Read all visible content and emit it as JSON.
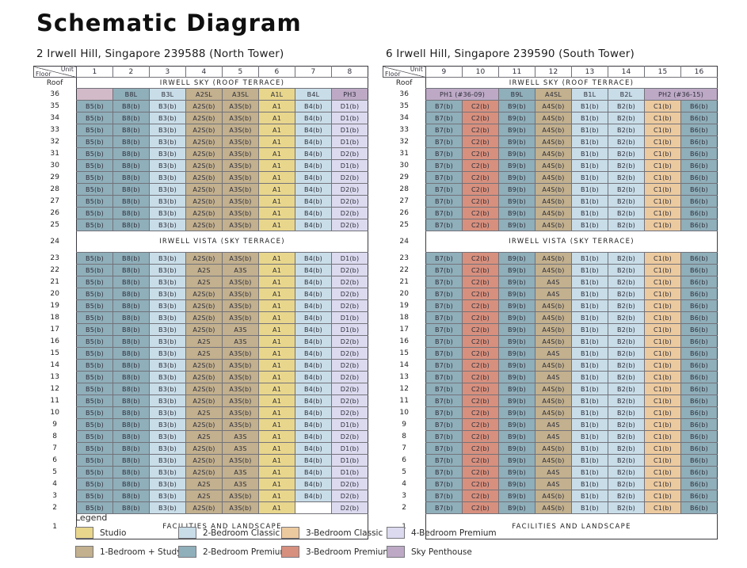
{
  "page": {
    "title": "Schematic Diagram"
  },
  "corner": {
    "unit": "Unit",
    "floor": "Floor"
  },
  "colors": {
    "studio": "#e8d68c",
    "1br_study": "#c2b08e",
    "2br_classic": "#c8dde8",
    "2br_premium": "#8fafba",
    "3br_classic": "#ecca9f",
    "3br_premium": "#d7907e",
    "4br_premium": "#dcdaef",
    "sky_penthouse": "#bda9c6"
  },
  "type_map": {
    "A1": "studio",
    "A2S": "1br_study",
    "A3S": "1br_study",
    "A4S": "1br_study",
    "B1": "2br_classic",
    "B2": "2br_classic",
    "B3": "2br_classic",
    "B4": "2br_classic",
    "B5": "2br_premium",
    "B6": "2br_premium",
    "B7": "2br_premium",
    "B8": "2br_premium",
    "B9": "2br_premium",
    "C1": "3br_classic",
    "C2": "3br_premium",
    "D1": "4br_premium",
    "D2": "4br_premium",
    "PH1": "sky_penthouse",
    "PH2": "sky_penthouse",
    "PH3": "sky_penthouse"
  },
  "towers": [
    {
      "subtitle": "2 Irwell Hill, Singapore 239588 (North Tower)",
      "units": [
        "1",
        "2",
        "3",
        "4",
        "5",
        "6",
        "7",
        "8"
      ],
      "roof": {
        "f": "Roof",
        "text": "IRWELL SKY (ROOF TERRACE)"
      },
      "row36": {
        "f": "36",
        "cells": [
          {
            "t": "",
            "type": "sky_penthouse",
            "color": "#d2bac9"
          },
          {
            "t": "B8L"
          },
          {
            "t": "B3L"
          },
          {
            "t": "A2SL"
          },
          {
            "t": "A3SL"
          },
          {
            "t": "A1L"
          },
          {
            "t": "B4L"
          },
          {
            "t": "PH3"
          }
        ]
      },
      "upper": [
        {
          "f": "35",
          "c": [
            "B5(b)",
            "B8(b)",
            "B3(b)",
            "A2S(b)",
            "A3S(b)",
            "A1",
            "B4(b)",
            "D1(b)"
          ]
        },
        {
          "f": "34",
          "c": [
            "B5(b)",
            "B8(b)",
            "B3(b)",
            "A2S(b)",
            "A3S(b)",
            "A1",
            "B4(b)",
            "D1(b)"
          ]
        },
        {
          "f": "33",
          "c": [
            "B5(b)",
            "B8(b)",
            "B3(b)",
            "A2S(b)",
            "A3S(b)",
            "A1",
            "B4(b)",
            "D1(b)"
          ]
        },
        {
          "f": "32",
          "c": [
            "B5(b)",
            "B8(b)",
            "B3(b)",
            "A2S(b)",
            "A3S(b)",
            "A1",
            "B4(b)",
            "D1(b)"
          ]
        },
        {
          "f": "31",
          "c": [
            "B5(b)",
            "B8(b)",
            "B3(b)",
            "A2S(b)",
            "A3S(b)",
            "A1",
            "B4(b)",
            "D2(b)"
          ]
        },
        {
          "f": "30",
          "c": [
            "B5(b)",
            "B8(b)",
            "B3(b)",
            "A2S(b)",
            "A3S(b)",
            "A1",
            "B4(b)",
            "D1(b)"
          ]
        },
        {
          "f": "29",
          "c": [
            "B5(b)",
            "B8(b)",
            "B3(b)",
            "A2S(b)",
            "A3S(b)",
            "A1",
            "B4(b)",
            "D2(b)"
          ]
        },
        {
          "f": "28",
          "c": [
            "B5(b)",
            "B8(b)",
            "B3(b)",
            "A2S(b)",
            "A3S(b)",
            "A1",
            "B4(b)",
            "D2(b)"
          ]
        },
        {
          "f": "27",
          "c": [
            "B5(b)",
            "B8(b)",
            "B3(b)",
            "A2S(b)",
            "A3S(b)",
            "A1",
            "B4(b)",
            "D2(b)"
          ]
        },
        {
          "f": "26",
          "c": [
            "B5(b)",
            "B8(b)",
            "B3(b)",
            "A2S(b)",
            "A3S(b)",
            "A1",
            "B4(b)",
            "D2(b)"
          ]
        },
        {
          "f": "25",
          "c": [
            "B5(b)",
            "B8(b)",
            "B3(b)",
            "A2S(b)",
            "A3S(b)",
            "A1",
            "B4(b)",
            "D2(b)"
          ]
        }
      ],
      "terrace": {
        "f": "24",
        "text": "IRWELL VISTA (SKY TERRACE)"
      },
      "lower": [
        {
          "f": "23",
          "c": [
            "B5(b)",
            "B8(b)",
            "B3(b)",
            "A2S(b)",
            "A3S(b)",
            "A1",
            "B4(b)",
            "D1(b)"
          ]
        },
        {
          "f": "22",
          "c": [
            "B5(b)",
            "B8(b)",
            "B3(b)",
            "A2S",
            "A3S",
            "A1",
            "B4(b)",
            "D2(b)"
          ]
        },
        {
          "f": "21",
          "c": [
            "B5(b)",
            "B8(b)",
            "B3(b)",
            "A2S",
            "A3S(b)",
            "A1",
            "B4(b)",
            "D2(b)"
          ]
        },
        {
          "f": "20",
          "c": [
            "B5(b)",
            "B8(b)",
            "B3(b)",
            "A2S(b)",
            "A3S(b)",
            "A1",
            "B4(b)",
            "D2(b)"
          ]
        },
        {
          "f": "19",
          "c": [
            "B5(b)",
            "B8(b)",
            "B3(b)",
            "A2S(b)",
            "A3S(b)",
            "A1",
            "B4(b)",
            "D2(b)"
          ]
        },
        {
          "f": "18",
          "c": [
            "B5(b)",
            "B8(b)",
            "B3(b)",
            "A2S(b)",
            "A3S(b)",
            "A1",
            "B4(b)",
            "D1(b)"
          ]
        },
        {
          "f": "17",
          "c": [
            "B5(b)",
            "B8(b)",
            "B3(b)",
            "A2S(b)",
            "A3S",
            "A1",
            "B4(b)",
            "D1(b)"
          ]
        },
        {
          "f": "16",
          "c": [
            "B5(b)",
            "B8(b)",
            "B3(b)",
            "A2S",
            "A3S",
            "A1",
            "B4(b)",
            "D2(b)"
          ]
        },
        {
          "f": "15",
          "c": [
            "B5(b)",
            "B8(b)",
            "B3(b)",
            "A2S",
            "A3S(b)",
            "A1",
            "B4(b)",
            "D2(b)"
          ]
        },
        {
          "f": "14",
          "c": [
            "B5(b)",
            "B8(b)",
            "B3(b)",
            "A2S(b)",
            "A3S(b)",
            "A1",
            "B4(b)",
            "D2(b)"
          ]
        },
        {
          "f": "13",
          "c": [
            "B5(b)",
            "B8(b)",
            "B3(b)",
            "A2S(b)",
            "A3S(b)",
            "A1",
            "B4(b)",
            "D2(b)"
          ]
        },
        {
          "f": "12",
          "c": [
            "B5(b)",
            "B8(b)",
            "B3(b)",
            "A2S(b)",
            "A3S(b)",
            "A1",
            "B4(b)",
            "D2(b)"
          ]
        },
        {
          "f": "11",
          "c": [
            "B5(b)",
            "B8(b)",
            "B3(b)",
            "A2S(b)",
            "A3S(b)",
            "A1",
            "B4(b)",
            "D2(b)"
          ]
        },
        {
          "f": "10",
          "c": [
            "B5(b)",
            "B8(b)",
            "B3(b)",
            "A2S",
            "A3S(b)",
            "A1",
            "B4(b)",
            "D2(b)"
          ]
        },
        {
          "f": "9",
          "c": [
            "B5(b)",
            "B8(b)",
            "B3(b)",
            "A2S(b)",
            "A3S(b)",
            "A1",
            "B4(b)",
            "D1(b)"
          ]
        },
        {
          "f": "8",
          "c": [
            "B5(b)",
            "B8(b)",
            "B3(b)",
            "A2S",
            "A3S",
            "A1",
            "B4(b)",
            "D2(b)"
          ]
        },
        {
          "f": "7",
          "c": [
            "B5(b)",
            "B8(b)",
            "B3(b)",
            "A2S(b)",
            "A3S",
            "A1",
            "B4(b)",
            "D1(b)"
          ]
        },
        {
          "f": "6",
          "c": [
            "B5(b)",
            "B8(b)",
            "B3(b)",
            "A2S(b)",
            "A3S(b)",
            "A1",
            "B4(b)",
            "D1(b)"
          ]
        },
        {
          "f": "5",
          "c": [
            "B5(b)",
            "B8(b)",
            "B3(b)",
            "A2S(b)",
            "A3S",
            "A1",
            "B4(b)",
            "D1(b)"
          ]
        },
        {
          "f": "4",
          "c": [
            "B5(b)",
            "B8(b)",
            "B3(b)",
            "A2S",
            "A3S",
            "A1",
            "B4(b)",
            "D2(b)"
          ]
        },
        {
          "f": "3",
          "c": [
            "B5(b)",
            "B8(b)",
            "B3(b)",
            "A2S",
            "A3S(b)",
            "A1",
            "B4(b)",
            "D2(b)"
          ]
        },
        {
          "f": "2",
          "c": [
            "B5(b)",
            "B8(b)",
            "B3(b)",
            "A2S(b)",
            "A3S(b)",
            "A1",
            null,
            "D2(b)"
          ]
        }
      ],
      "facilities": {
        "f": "1",
        "text": "FACILITIES AND LANDSCAPE"
      }
    },
    {
      "subtitle": "6 Irwell Hill, Singapore 239590 (South Tower)",
      "units": [
        "9",
        "10",
        "11",
        "12",
        "13",
        "14",
        "15",
        "16"
      ],
      "roof": {
        "f": "Roof",
        "text": "IRWELL SKY (ROOF TERRACE)"
      },
      "row36": {
        "f": "36",
        "cells": [
          {
            "t": "PH1 (#36-09)",
            "span": 2
          },
          {
            "t": "B9L"
          },
          {
            "t": "A4SL"
          },
          {
            "t": "B1L"
          },
          {
            "t": "B2L"
          },
          {
            "t": "PH2 (#36-15)",
            "span": 2
          }
        ]
      },
      "upper": [
        {
          "f": "35",
          "c": [
            "B7(b)",
            "C2(b)",
            "B9(b)",
            "A4S(b)",
            "B1(b)",
            "B2(b)",
            "C1(b)",
            "B6(b)"
          ]
        },
        {
          "f": "34",
          "c": [
            "B7(b)",
            "C2(b)",
            "B9(b)",
            "A4S(b)",
            "B1(b)",
            "B2(b)",
            "C1(b)",
            "B6(b)"
          ]
        },
        {
          "f": "33",
          "c": [
            "B7(b)",
            "C2(b)",
            "B9(b)",
            "A4S(b)",
            "B1(b)",
            "B2(b)",
            "C1(b)",
            "B6(b)"
          ]
        },
        {
          "f": "32",
          "c": [
            "B7(b)",
            "C2(b)",
            "B9(b)",
            "A4S(b)",
            "B1(b)",
            "B2(b)",
            "C1(b)",
            "B6(b)"
          ]
        },
        {
          "f": "31",
          "c": [
            "B7(b)",
            "C2(b)",
            "B9(b)",
            "A4S(b)",
            "B1(b)",
            "B2(b)",
            "C1(b)",
            "B6(b)"
          ]
        },
        {
          "f": "30",
          "c": [
            "B7(b)",
            "C2(b)",
            "B9(b)",
            "A4S(b)",
            "B1(b)",
            "B2(b)",
            "C1(b)",
            "B6(b)"
          ]
        },
        {
          "f": "29",
          "c": [
            "B7(b)",
            "C2(b)",
            "B9(b)",
            "A4S(b)",
            "B1(b)",
            "B2(b)",
            "C1(b)",
            "B6(b)"
          ]
        },
        {
          "f": "28",
          "c": [
            "B7(b)",
            "C2(b)",
            "B9(b)",
            "A4S(b)",
            "B1(b)",
            "B2(b)",
            "C1(b)",
            "B6(b)"
          ]
        },
        {
          "f": "27",
          "c": [
            "B7(b)",
            "C2(b)",
            "B9(b)",
            "A4S(b)",
            "B1(b)",
            "B2(b)",
            "C1(b)",
            "B6(b)"
          ]
        },
        {
          "f": "26",
          "c": [
            "B7(b)",
            "C2(b)",
            "B9(b)",
            "A4S(b)",
            "B1(b)",
            "B2(b)",
            "C1(b)",
            "B6(b)"
          ]
        },
        {
          "f": "25",
          "c": [
            "B7(b)",
            "C2(b)",
            "B9(b)",
            "A4S(b)",
            "B1(b)",
            "B2(b)",
            "C1(b)",
            "B6(b)"
          ]
        }
      ],
      "terrace": {
        "f": "24",
        "text": "IRWELL VISTA (SKY TERRACE)"
      },
      "lower": [
        {
          "f": "23",
          "c": [
            "B7(b)",
            "C2(b)",
            "B9(b)",
            "A4S(b)",
            "B1(b)",
            "B2(b)",
            "C1(b)",
            "B6(b)"
          ]
        },
        {
          "f": "22",
          "c": [
            "B7(b)",
            "C2(b)",
            "B9(b)",
            "A4S(b)",
            "B1(b)",
            "B2(b)",
            "C1(b)",
            "B6(b)"
          ]
        },
        {
          "f": "21",
          "c": [
            "B7(b)",
            "C2(b)",
            "B9(b)",
            "A4S",
            "B1(b)",
            "B2(b)",
            "C1(b)",
            "B6(b)"
          ]
        },
        {
          "f": "20",
          "c": [
            "B7(b)",
            "C2(b)",
            "B9(b)",
            "A4S",
            "B1(b)",
            "B2(b)",
            "C1(b)",
            "B6(b)"
          ]
        },
        {
          "f": "19",
          "c": [
            "B7(b)",
            "C2(b)",
            "B9(b)",
            "A4S(b)",
            "B1(b)",
            "B2(b)",
            "C1(b)",
            "B6(b)"
          ]
        },
        {
          "f": "18",
          "c": [
            "B7(b)",
            "C2(b)",
            "B9(b)",
            "A4S(b)",
            "B1(b)",
            "B2(b)",
            "C1(b)",
            "B6(b)"
          ]
        },
        {
          "f": "17",
          "c": [
            "B7(b)",
            "C2(b)",
            "B9(b)",
            "A4S(b)",
            "B1(b)",
            "B2(b)",
            "C1(b)",
            "B6(b)"
          ]
        },
        {
          "f": "16",
          "c": [
            "B7(b)",
            "C2(b)",
            "B9(b)",
            "A4S(b)",
            "B1(b)",
            "B2(b)",
            "C1(b)",
            "B6(b)"
          ]
        },
        {
          "f": "15",
          "c": [
            "B7(b)",
            "C2(b)",
            "B9(b)",
            "A4S",
            "B1(b)",
            "B2(b)",
            "C1(b)",
            "B6(b)"
          ]
        },
        {
          "f": "14",
          "c": [
            "B7(b)",
            "C2(b)",
            "B9(b)",
            "A4S(b)",
            "B1(b)",
            "B2(b)",
            "C1(b)",
            "B6(b)"
          ]
        },
        {
          "f": "13",
          "c": [
            "B7(b)",
            "C2(b)",
            "B9(b)",
            "A4S",
            "B1(b)",
            "B2(b)",
            "C1(b)",
            "B6(b)"
          ]
        },
        {
          "f": "12",
          "c": [
            "B7(b)",
            "C2(b)",
            "B9(b)",
            "A4S(b)",
            "B1(b)",
            "B2(b)",
            "C1(b)",
            "B6(b)"
          ]
        },
        {
          "f": "11",
          "c": [
            "B7(b)",
            "C2(b)",
            "B9(b)",
            "A4S(b)",
            "B1(b)",
            "B2(b)",
            "C1(b)",
            "B6(b)"
          ]
        },
        {
          "f": "10",
          "c": [
            "B7(b)",
            "C2(b)",
            "B9(b)",
            "A4S(b)",
            "B1(b)",
            "B2(b)",
            "C1(b)",
            "B6(b)"
          ]
        },
        {
          "f": "9",
          "c": [
            "B7(b)",
            "C2(b)",
            "B9(b)",
            "A4S",
            "B1(b)",
            "B2(b)",
            "C1(b)",
            "B6(b)"
          ]
        },
        {
          "f": "8",
          "c": [
            "B7(b)",
            "C2(b)",
            "B9(b)",
            "A4S",
            "B1(b)",
            "B2(b)",
            "C1(b)",
            "B6(b)"
          ]
        },
        {
          "f": "7",
          "c": [
            "B7(b)",
            "C2(b)",
            "B9(b)",
            "A4S(b)",
            "B1(b)",
            "B2(b)",
            "C1(b)",
            "B6(b)"
          ]
        },
        {
          "f": "6",
          "c": [
            "B7(b)",
            "C2(b)",
            "B9(b)",
            "A4S(b)",
            "B1(b)",
            "B2(b)",
            "C1(b)",
            "B6(b)"
          ]
        },
        {
          "f": "5",
          "c": [
            "B7(b)",
            "C2(b)",
            "B9(b)",
            "A4S",
            "B1(b)",
            "B2(b)",
            "C1(b)",
            "B6(b)"
          ]
        },
        {
          "f": "4",
          "c": [
            "B7(b)",
            "C2(b)",
            "B9(b)",
            "A4S",
            "B1(b)",
            "B2(b)",
            "C1(b)",
            "B6(b)"
          ]
        },
        {
          "f": "3",
          "c": [
            "B7(b)",
            "C2(b)",
            "B9(b)",
            "A4S(b)",
            "B1(b)",
            "B2(b)",
            "C1(b)",
            "B6(b)"
          ]
        },
        {
          "f": "2",
          "c": [
            "B7(b)",
            "C2(b)",
            "B9(b)",
            "A4S(b)",
            "B1(b)",
            "B2(b)",
            "C1(b)",
            "B6(b)"
          ]
        }
      ],
      "facilities": {
        "f": "1",
        "text": "FACILITIES AND LANDSCAPE"
      }
    }
  ],
  "legend": {
    "label": "Legend",
    "items": [
      {
        "name": "Studio",
        "key": "studio"
      },
      {
        "name": "2-Bedroom Classic",
        "key": "2br_classic"
      },
      {
        "name": "3-Bedroom Classic",
        "key": "3br_classic"
      },
      {
        "name": "4-Bedroom Premium",
        "key": "4br_premium"
      },
      {
        "name": "1-Bedroom + Study",
        "key": "1br_study"
      },
      {
        "name": "2-Bedroom Premium",
        "key": "2br_premium"
      },
      {
        "name": "3-Bedroom Premium",
        "key": "3br_premium"
      },
      {
        "name": "Sky Penthouse",
        "key": "sky_penthouse"
      }
    ]
  }
}
